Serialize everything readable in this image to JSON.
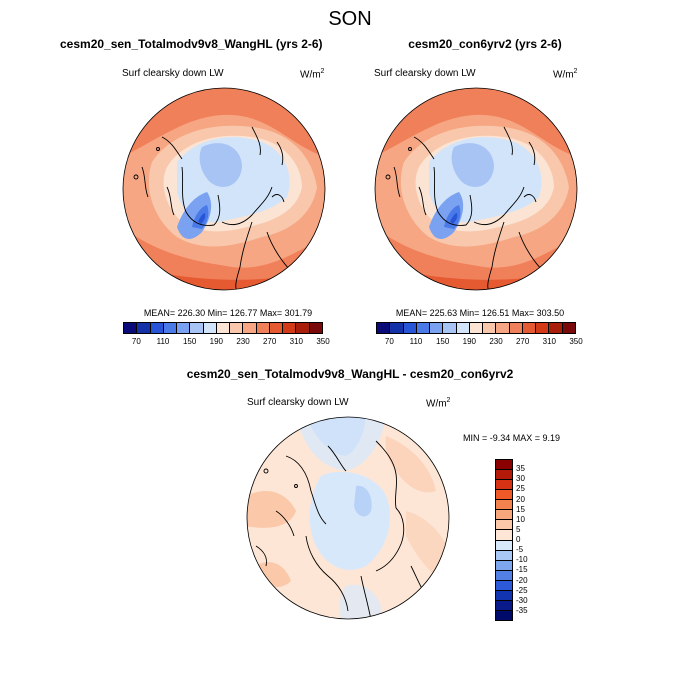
{
  "title": "SON",
  "panels": [
    {
      "title": "cesm20_sen_Totalmodv9v8_WangHL (yrs 2-6)",
      "variable": "Surf clearsky down LW",
      "units_base": "W/m",
      "units_exp": "2",
      "stats": "MEAN= 226.30  Min= 126.77  Max= 301.79"
    },
    {
      "title": "cesm20_con6yrv2 (yrs 2-6)",
      "variable": "Surf clearsky down LW",
      "units_base": "W/m",
      "units_exp": "2",
      "stats": "MEAN= 225.63  Min= 126.51  Max= 303.50"
    },
    {
      "title": "cesm20_sen_Totalmodv9v8_WangHL - cesm20_con6yrv2",
      "variable": "Surf clearsky down LW",
      "units_base": "W/m",
      "units_exp": "2",
      "stats": "MIN =  -9.34 MAX =   9.19"
    }
  ],
  "colorbar_top": {
    "labels": [
      "70",
      "110",
      "150",
      "190",
      "230",
      "270",
      "310",
      "350"
    ],
    "colors": [
      "#0a0a78",
      "#1432a8",
      "#2855d8",
      "#4a7ae8",
      "#7aa2f0",
      "#a8c4f5",
      "#d2e4fa",
      "#fbe4d4",
      "#f9c8ac",
      "#f6a682",
      "#f0805a",
      "#e65a32",
      "#d23a18",
      "#a81e0a",
      "#7a0a0a"
    ]
  },
  "colorbar_diff": {
    "labels": [
      "35",
      "30",
      "25",
      "20",
      "15",
      "10",
      "5",
      "0",
      "-5",
      "-10",
      "-15",
      "-20",
      "-25",
      "-30",
      "-35"
    ],
    "colors": [
      "#8b0000",
      "#b41a0a",
      "#d83214",
      "#ef5a28",
      "#f4824e",
      "#f8a67c",
      "#fbc8aa",
      "#fde6d6",
      "#d8e8fb",
      "#aac8f5",
      "#7ea6ee",
      "#5280e4",
      "#2c5ad8",
      "#1234b0",
      "#0a1a8a",
      "#000a6a"
    ]
  }
}
